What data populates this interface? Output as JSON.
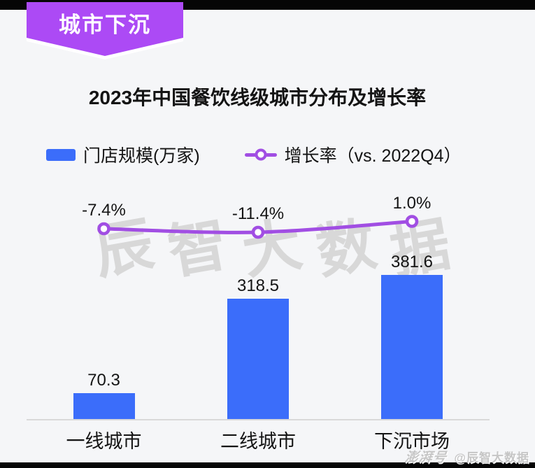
{
  "banner": {
    "label": "城市下沉"
  },
  "title": "2023年中国餐饮线级城市分布及增长率",
  "legend": {
    "bar_label": "门店规模(万家)",
    "line_label": "增长率（vs. 2022Q4）"
  },
  "watermark": {
    "center_text": "辰智大数据",
    "footer_logo": "澎湃号",
    "footer_handle": "@辰智大数据"
  },
  "colors": {
    "background": "#f5f6f8",
    "strip": "#060606",
    "bar": "#3b6dfa",
    "line": "#a14ee3",
    "ribbon": "#ac4af5",
    "axis_line": "#d9d9d9",
    "center_watermark": "#d8d8d8",
    "footer_watermark": "#c6c6c6",
    "text": "#141414"
  },
  "chart_data": {
    "type": "combo",
    "categories": [
      "一线城市",
      "二线城市",
      "下沉市场"
    ],
    "series": [
      {
        "name": "门店规模(万家)",
        "type": "bar",
        "values": [
          70.3,
          318.5,
          381.6
        ],
        "labels": [
          "70.3",
          "318.5",
          "381.6"
        ],
        "color": "#3b6dfa"
      },
      {
        "name": "增长率（vs. 2022Q4）",
        "type": "line",
        "unit": "%",
        "values": [
          -7.4,
          -11.4,
          1.0
        ],
        "labels": [
          "-7.4%",
          "-11.4%",
          "1.0%"
        ],
        "color": "#a14ee3"
      }
    ],
    "title": "2023年中国餐饮线级城市分布及增长率",
    "xlabel": "",
    "ylabel": "",
    "legend_position": "top",
    "grid": false,
    "value_labels": true
  }
}
